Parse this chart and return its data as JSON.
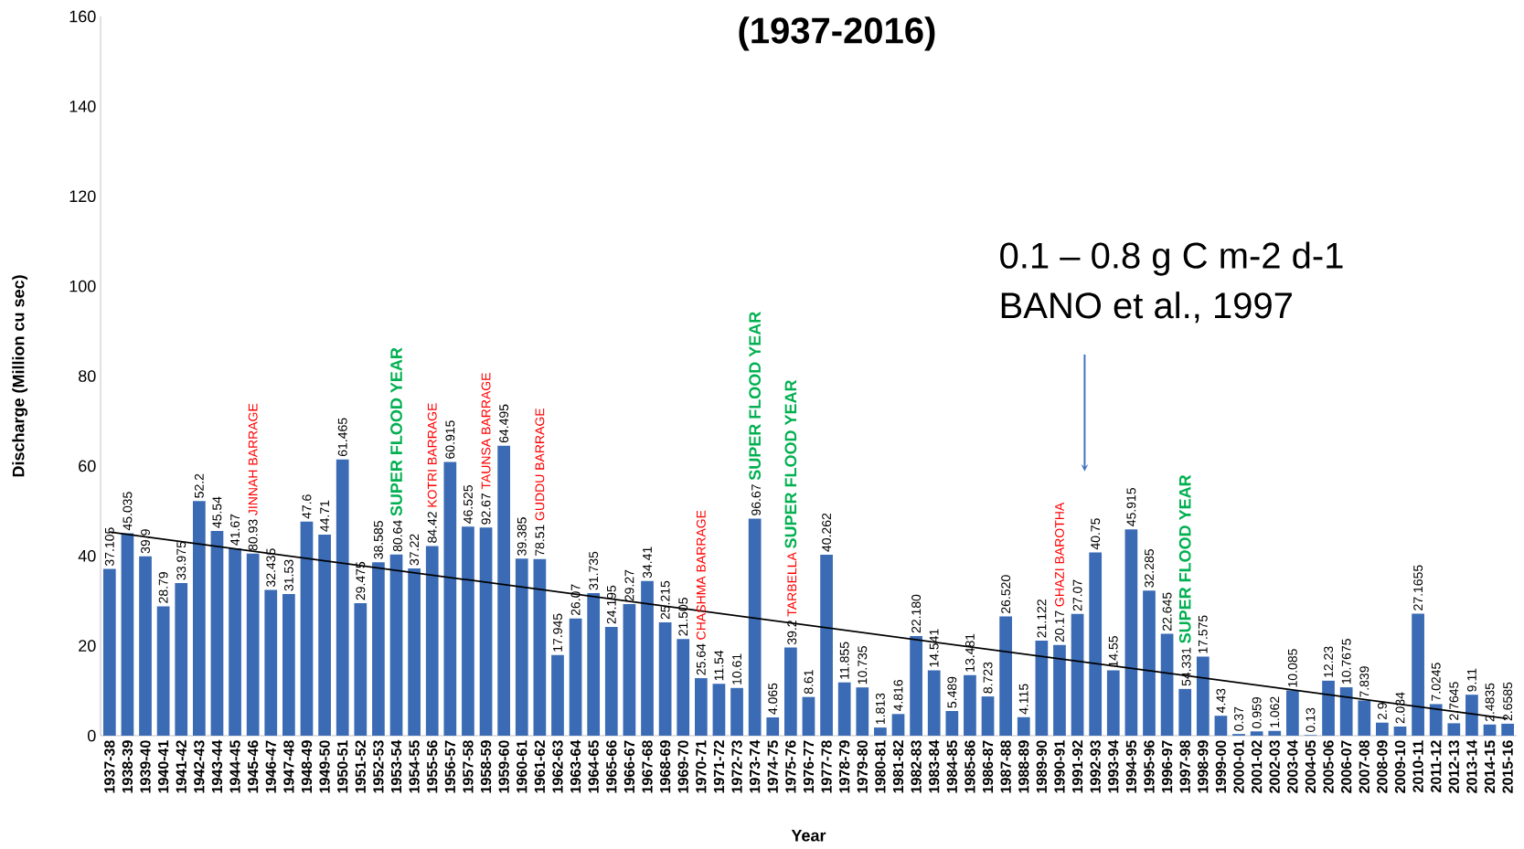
{
  "chart_data": {
    "type": "bar",
    "title": "(1937-2016)",
    "xlabel": "Year",
    "ylabel": "Discharge   (Million cu sec)",
    "categories": [
      "1937-38",
      "1938-39",
      "1939-40",
      "1940-41",
      "1941-42",
      "1942-43",
      "1943-44",
      "1944-45",
      "1945-46",
      "1946-47",
      "1947-48",
      "1948-49",
      "1949-50",
      "1950-51",
      "1951-52",
      "1952-53",
      "1953-54",
      "1954-55",
      "1955-56",
      "1956-57",
      "1957-58",
      "1958-59",
      "1959-60",
      "1960-61",
      "1961-62",
      "1962-63",
      "1963-64",
      "1964-65",
      "1965-66",
      "1966-67",
      "1967-68",
      "1968-69",
      "1969-70",
      "1970-71",
      "1971-72",
      "1972-73",
      "1973-74",
      "1974-75",
      "1975-76",
      "1976-77",
      "1977-78",
      "1978-79",
      "1979-80",
      "1980-81",
      "1981-82",
      "1982-83",
      "1983-84",
      "1984-85",
      "1985-86",
      "1986-87",
      "1987-88",
      "1988-89",
      "1989-90",
      "1990-91",
      "1991-92",
      "1992-93",
      "1993-94",
      "1994-95",
      "1995-96",
      "1996-97",
      "1997-98",
      "1998-99",
      "1999-00",
      "2000-01",
      "2001-02",
      "2002-03",
      "2003-04",
      "2004-05",
      "2005-06",
      "2006-07",
      "2007-08",
      "2008-09",
      "2009-10",
      "2010-11",
      "2011-12",
      "2012-13",
      "2013-14",
      "2014-15",
      "2015-16"
    ],
    "series": [
      {
        "color": "#3a6bb4",
        "values": [
          37.105,
          45.035,
          39.9,
          28.79,
          33.975,
          52.2,
          45.54,
          41.67,
          40.5,
          32.435,
          31.53,
          47.6,
          44.71,
          61.465,
          29.475,
          38.585,
          40.3,
          37.22,
          42.2,
          60.915,
          46.525,
          46.3,
          64.495,
          39.385,
          39.3,
          17.945,
          26.07,
          31.735,
          24.195,
          29.27,
          34.41,
          25.215,
          21.505,
          12.8,
          11.54,
          10.61,
          48.3,
          4.065,
          19.6,
          8.61,
          40.262,
          11.855,
          10.735,
          1.813,
          4.816,
          22.18,
          14.541,
          5.489,
          13.481,
          8.723,
          26.52,
          4.115,
          21.122,
          20.17,
          27.07,
          40.75,
          14.55,
          45.915,
          32.285,
          22.645,
          10.4,
          17.575,
          4.43,
          0.37,
          0.959,
          1.062,
          10.085,
          0.13,
          12.23,
          10.7675,
          7.839,
          2.9,
          2.034,
          27.1655,
          7.0245,
          2.7645,
          9.11,
          2.4835,
          2.6585
        ],
        "value_labels": [
          "37.105",
          "45.035",
          "39.9",
          "28.79",
          "33.975",
          "52.2",
          "45.54",
          "41.67",
          null,
          "32.435",
          "31.53",
          "47.6",
          "44.71",
          "61.465",
          "29.475",
          "38.585",
          null,
          "37.22",
          null,
          "60.915",
          "46.525",
          null,
          "64.495",
          "39.385",
          null,
          "17.945",
          "26.07",
          "31.735",
          "24.195",
          "29.27",
          "34.41",
          "25.215",
          "21.505",
          null,
          "11.54",
          "10.61",
          null,
          "4.065",
          null,
          "8.61",
          "40.262",
          "11.855",
          "10.735",
          "1.813",
          "4.816",
          "22.180",
          "14.541",
          "5.489",
          "13.481",
          "8.723",
          "26.520",
          "4.115",
          "21.122",
          "20.17",
          "27.07",
          "40.75",
          "14.55",
          "45.915",
          "32.285",
          "22.645",
          null,
          "17.575",
          "4.43",
          "0.37",
          "0.959",
          "1.062",
          "10.085",
          "0.13",
          "12.23",
          "10.7675",
          "7.839",
          "2.9",
          "2.034",
          "27.1655",
          "7.0245",
          "2.7645",
          "9.11",
          "2.4835",
          "2.6585"
        ]
      },
      {
        "type": "line",
        "color": "#000000",
        "x": [
          "1937-38",
          "2015-16"
        ],
        "values": [
          45.3,
          3.8
        ]
      }
    ],
    "ylim": [
      0,
      160
    ],
    "yticks": [
      0,
      20,
      40,
      60,
      80,
      100,
      120,
      140,
      160
    ],
    "grid": false,
    "annotations": [
      "80.93",
      "JINNAH BARRAGE",
      "80.64",
      "SUPER FLOOD YEAR",
      "84.42",
      "KOTRI BARRAGE",
      "92.67",
      "TAUNSA BARRAGE",
      "78.51",
      "GUDDU BARRAGE",
      "25.64",
      "CHASHMA BARRAGE",
      "96.67",
      "SUPER FLOOD YEAR",
      "39.2",
      "TARBELLA",
      "SUPER FLOOD YEAR",
      "GHAZI BAROTHA",
      "54.331",
      "SUPER FLOOD YEAR",
      "0.1 – 0.8 g C m-2 d-1",
      "BANO et al., 1997"
    ]
  }
}
